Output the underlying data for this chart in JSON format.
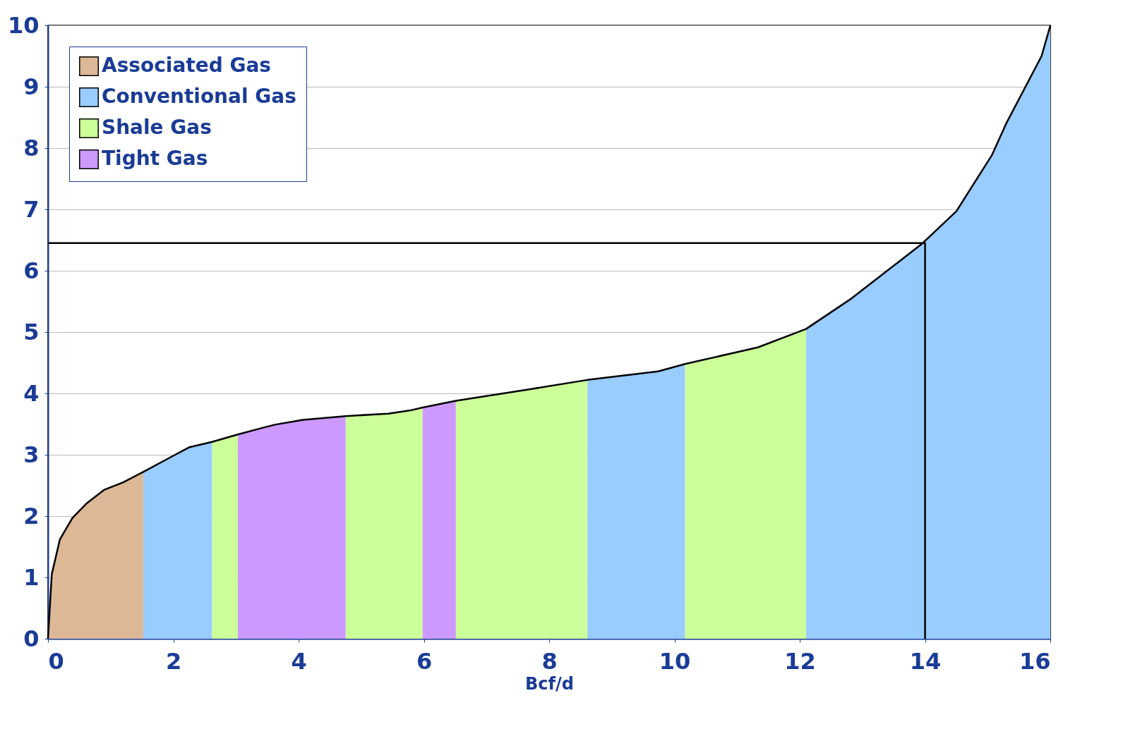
{
  "chart_data": {
    "type": "area",
    "xlabel": "Bcf/d",
    "xlim": [
      0,
      16
    ],
    "ylim": [
      0,
      10
    ],
    "xticks": [
      0,
      2,
      4,
      6,
      8,
      10,
      12,
      14,
      16
    ],
    "yticks": [
      0,
      1,
      2,
      3,
      4,
      5,
      6,
      7,
      8,
      9,
      10
    ],
    "grid": "y",
    "legend": "top left",
    "series": [
      {
        "name": "Associated Gas",
        "color": "#dcb896",
        "x": [
          0,
          0.06,
          0.19,
          0.39,
          0.61,
          0.9,
          1.2,
          1.52
        ],
        "values": [
          0,
          1.05,
          1.62,
          1.97,
          2.2,
          2.43,
          2.55,
          2.72
        ]
      },
      {
        "name": "Conventional Gas",
        "color": "#99ccff",
        "x": [
          1.52,
          2.03,
          2.25,
          2.62,
          null,
          8.61,
          9.74,
          10.17,
          null,
          12.1,
          12.8,
          13.37,
          13.94,
          14.5,
          15.07,
          15.3,
          15.86,
          16
        ],
        "values": [
          2.72,
          3.0,
          3.12,
          3.21,
          null,
          4.22,
          4.36,
          4.48,
          null,
          5.05,
          5.53,
          5.98,
          6.43,
          6.97,
          7.89,
          8.41,
          9.5,
          10
        ]
      },
      {
        "name": "Shale Gas",
        "color": "#ccff99",
        "x": [
          2.62,
          3.03,
          null,
          4.75,
          5.43,
          5.77,
          5.98,
          null,
          6.51,
          7.7,
          8.61,
          null,
          10.17,
          11.33,
          12.1
        ],
        "values": [
          3.21,
          3.33,
          null,
          3.63,
          3.67,
          3.72,
          3.77,
          null,
          3.88,
          4.07,
          4.22,
          null,
          4.48,
          4.75,
          5.05
        ]
      },
      {
        "name": "Tight Gas",
        "color": "#cc99ff",
        "x": [
          3.03,
          3.39,
          3.62,
          4.07,
          4.75,
          null,
          5.98,
          6.51
        ],
        "values": [
          3.33,
          3.43,
          3.49,
          3.57,
          3.63,
          null,
          3.77,
          3.88
        ]
      },
      {
        "type": "line",
        "color": "#000000",
        "x": [
          0,
          0.06,
          0.19,
          0.39,
          0.61,
          0.9,
          1.2,
          1.52,
          2.03,
          2.25,
          2.62,
          3.03,
          3.39,
          3.62,
          4.07,
          4.75,
          5.43,
          5.77,
          5.98,
          6.51,
          7.7,
          8.61,
          9.74,
          10.17,
          11.33,
          12.1,
          12.8,
          13.37,
          13.94,
          14.5,
          15.07,
          15.3,
          15.86,
          16
        ],
        "values": [
          0,
          1.05,
          1.62,
          1.97,
          2.2,
          2.43,
          2.55,
          2.72,
          3.0,
          3.12,
          3.21,
          3.33,
          3.43,
          3.49,
          3.57,
          3.63,
          3.67,
          3.72,
          3.77,
          3.88,
          4.07,
          4.22,
          4.36,
          4.48,
          4.75,
          5.05,
          5.53,
          5.98,
          6.43,
          6.97,
          7.89,
          8.41,
          9.5,
          10
        ]
      },
      {
        "type": "line",
        "color": "#000000",
        "x": [
          0,
          14,
          14
        ],
        "values": [
          6.45,
          6.45,
          0
        ]
      }
    ]
  }
}
